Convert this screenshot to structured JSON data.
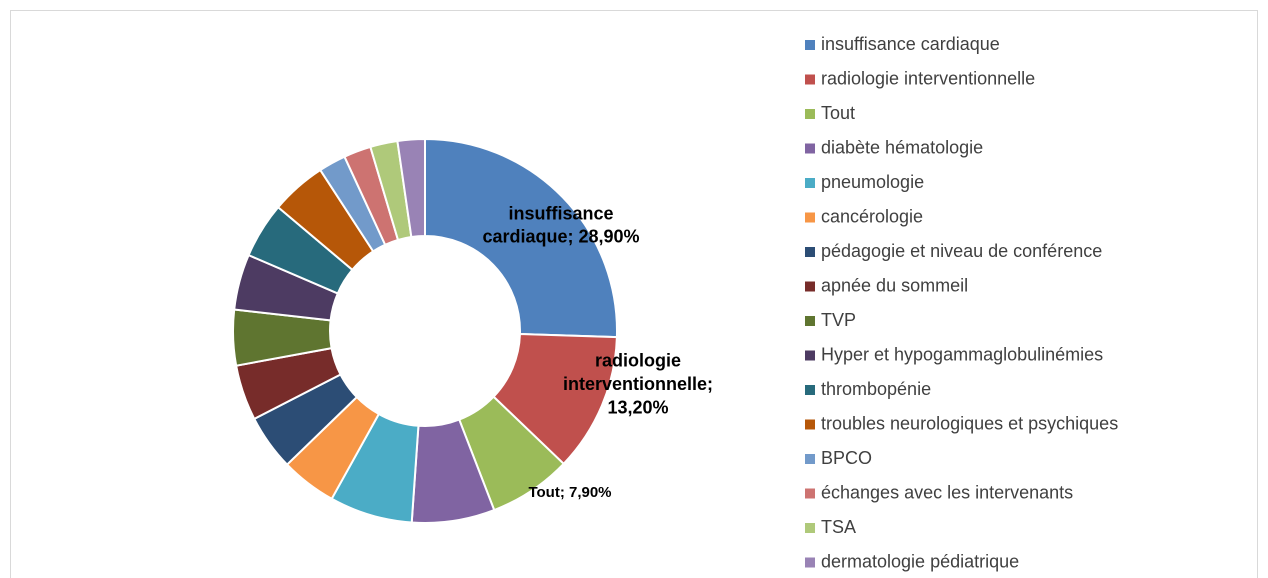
{
  "chart_data": {
    "type": "donut",
    "categories": [
      "insuffisance cardiaque",
      "radiologie interventionnelle",
      "Tout",
      "diabète hématologie",
      "pneumologie",
      "cancérologie",
      "pédagogie et niveau de conférence",
      "apnée du sommeil",
      "TVP",
      "Hyper et hypogammaglobulinémies",
      "thrombopénie",
      "troubles neurologiques et psychiques",
      "BPCO",
      "échanges avec les intervenants",
      "TSA",
      "dermatologie pédiatrique"
    ],
    "values": [
      28.9,
      13.2,
      7.9,
      7.9,
      7.9,
      5.3,
      5.3,
      5.3,
      5.3,
      5.3,
      5.3,
      5.3,
      2.6,
      2.6,
      2.6,
      2.6
    ],
    "value_labels": [
      "insuffisance cardiaque; 28,90%",
      "radiologie interventionnelle; 13,20%",
      "Tout; 7,90%",
      null,
      null,
      null,
      null,
      null,
      null,
      null,
      null,
      null,
      null,
      null,
      null,
      null
    ],
    "colors": [
      "#4f81bd",
      "#c0504d",
      "#9bbb59",
      "#8064a2",
      "#4bacc6",
      "#f79646",
      "#2c4d75",
      "#772c2a",
      "#5f7530",
      "#4d3b62",
      "#276a7c",
      "#b65708",
      "#729aca",
      "#cd7371",
      "#afc97a",
      "#9983b5"
    ],
    "legend": "right"
  }
}
